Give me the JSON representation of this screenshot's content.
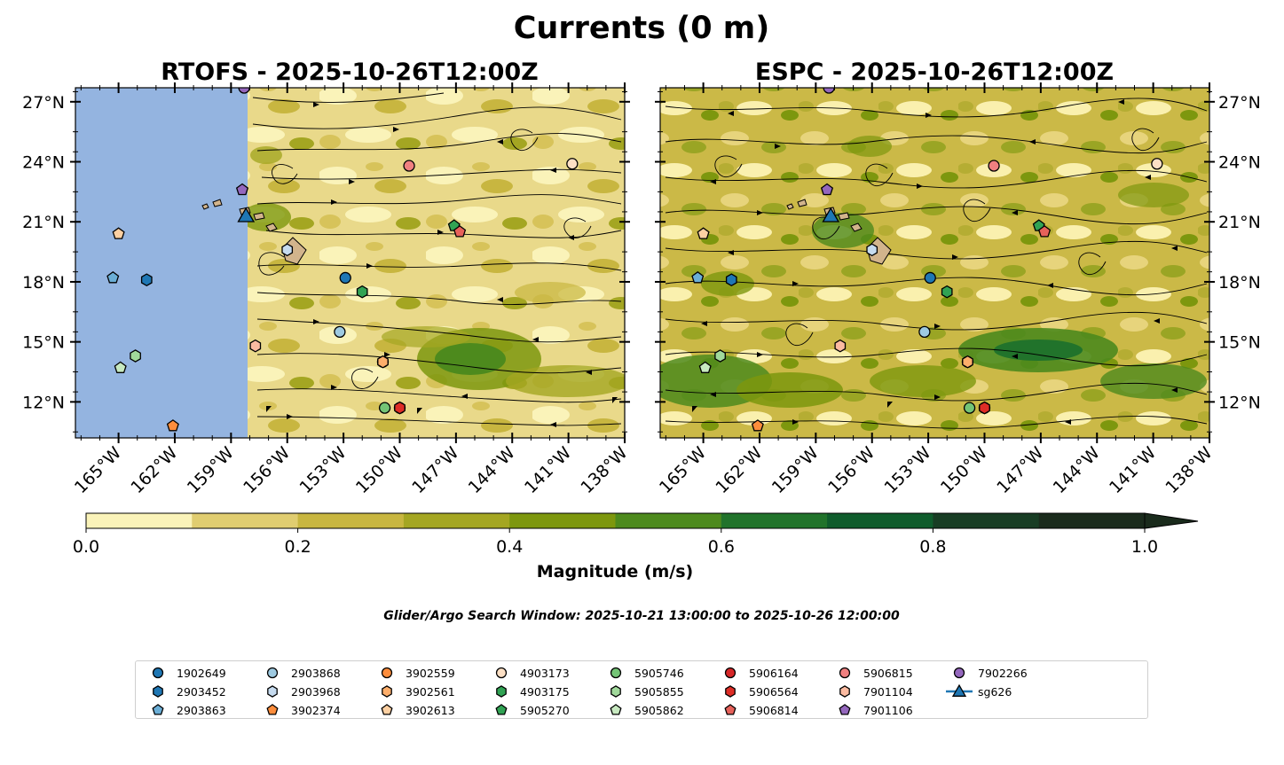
{
  "figure": {
    "title": "Currents (0 m)",
    "search_window": "Glider/Argo Search Window: 2025-10-21 13:00:00 to 2025-10-26 12:00:00"
  },
  "panels": [
    {
      "id": "rtofs",
      "title": "RTOFS - 2025-10-26T12:00Z",
      "no_data_west_of_lon": -157.2
    },
    {
      "id": "espc",
      "title": "ESPC - 2025-10-26T12:00Z",
      "no_data_west_of_lon": null
    }
  ],
  "map": {
    "lon_range": [
      -167.3,
      -138.0
    ],
    "lat_range": [
      10.2,
      27.7
    ],
    "lon_ticks": [
      -165,
      -162,
      -159,
      -156,
      -153,
      -150,
      -147,
      -144,
      -141,
      -138
    ],
    "lon_tick_labels": [
      "165°W",
      "162°W",
      "159°W",
      "156°W",
      "153°W",
      "150°W",
      "147°W",
      "144°W",
      "141°W",
      "138°W"
    ],
    "lat_ticks": [
      12,
      15,
      18,
      21,
      24,
      27
    ],
    "lat_tick_labels": [
      "12°N",
      "15°N",
      "18°N",
      "21°N",
      "24°N",
      "27°N"
    ],
    "land_color": "#d2b48c",
    "no_data_color": "#94b4e0"
  },
  "colorbar": {
    "label": "Magnitude (m/s)",
    "min": 0.0,
    "max": 1.0,
    "extend": "max",
    "tick_labels": [
      "0.0",
      "0.2",
      "0.4",
      "0.6",
      "0.8",
      "1.0"
    ],
    "levels": [
      "#faf3b9",
      "#e0cd70",
      "#c8b640",
      "#a4a622",
      "#7d970e",
      "#4d8a1d",
      "#21732b",
      "#0f5c2c",
      "#183d24",
      "#1a2b1c"
    ]
  },
  "floats": [
    {
      "id": "1902649",
      "marker": "circle",
      "color": "#1f77b4",
      "lon": -152.9,
      "lat": 18.2
    },
    {
      "id": "2903452",
      "marker": "hexagon",
      "color": "#1f77b4",
      "lon": -163.5,
      "lat": 18.1
    },
    {
      "id": "2903863",
      "marker": "pentagon",
      "color": "#6baed6",
      "lon": -165.3,
      "lat": 18.2
    },
    {
      "id": "2903868",
      "marker": "circle",
      "color": "#9ecae1",
      "lon": -153.2,
      "lat": 15.5
    },
    {
      "id": "2903968",
      "marker": "hexagon",
      "color": "#c6dbef",
      "lon": -156.0,
      "lat": 19.6
    },
    {
      "id": "3902374",
      "marker": "pentagon",
      "color": "#fd8d3c",
      "lon": -162.1,
      "lat": 10.8
    },
    {
      "id": "3902559",
      "marker": "circle",
      "color": "#fd8d3c",
      "lon": -150.9,
      "lat": 14.0
    },
    {
      "id": "3902561",
      "marker": "hexagon",
      "color": "#fdae6b",
      "lon": -150.9,
      "lat": 14.0
    },
    {
      "id": "3902613",
      "marker": "pentagon",
      "color": "#fdd0a2",
      "lon": -165.0,
      "lat": 20.4
    },
    {
      "id": "4903173",
      "marker": "circle",
      "color": "#fde0c5",
      "lon": -140.8,
      "lat": 23.9
    },
    {
      "id": "4903175",
      "marker": "hexagon",
      "color": "#31a354",
      "lon": -152.0,
      "lat": 17.5
    },
    {
      "id": "5905270",
      "marker": "pentagon",
      "color": "#31a354",
      "lon": -147.1,
      "lat": 20.8
    },
    {
      "id": "5905746",
      "marker": "circle",
      "color": "#74c476",
      "lon": -150.8,
      "lat": 11.7
    },
    {
      "id": "5905855",
      "marker": "hexagon",
      "color": "#a1d99b",
      "lon": -164.1,
      "lat": 14.3
    },
    {
      "id": "5905862",
      "marker": "pentagon",
      "color": "#c7e9c0",
      "lon": -164.9,
      "lat": 13.7
    },
    {
      "id": "5906164",
      "marker": "circle",
      "color": "#d62728",
      "lon": -150.0,
      "lat": 11.7
    },
    {
      "id": "5906564",
      "marker": "hexagon",
      "color": "#de2d26",
      "lon": -150.0,
      "lat": 11.7
    },
    {
      "id": "5906814",
      "marker": "pentagon",
      "color": "#e6615a",
      "lon": -146.8,
      "lat": 20.5
    },
    {
      "id": "5906815",
      "marker": "circle",
      "color": "#f08080",
      "lon": -149.5,
      "lat": 23.8
    },
    {
      "id": "7901104",
      "marker": "hexagon",
      "color": "#fcbba1",
      "lon": -157.7,
      "lat": 14.8
    },
    {
      "id": "7901106",
      "marker": "pentagon",
      "color": "#9467bd",
      "lon": -158.4,
      "lat": 22.6
    },
    {
      "id": "7902266",
      "marker": "circle",
      "color": "#9467bd",
      "lon": -158.3,
      "lat": 27.7
    },
    {
      "id": "sg626",
      "marker": "triangle",
      "color": "#1f77b4",
      "lon": -158.2,
      "lat": 21.3
    }
  ]
}
